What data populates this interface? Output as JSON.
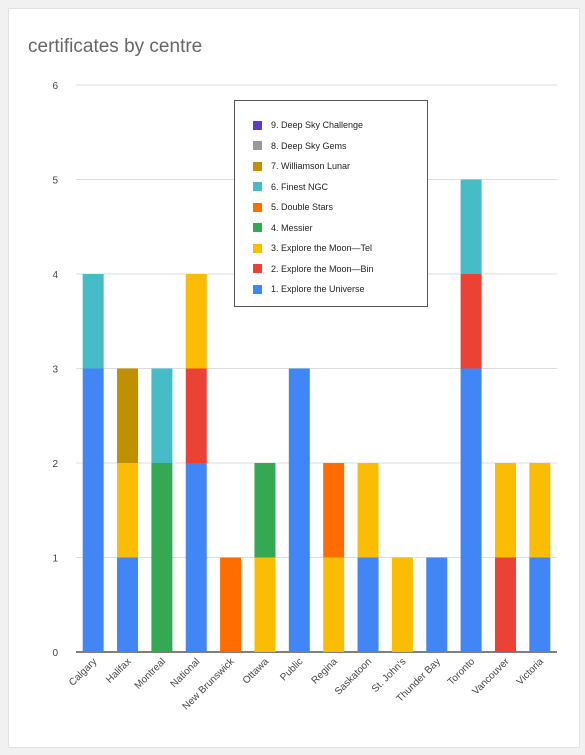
{
  "chart_data": {
    "type": "bar",
    "stacked": true,
    "title": "certificates by centre",
    "xlabel": "",
    "ylabel": "",
    "ylim": [
      0,
      6
    ],
    "yticks": [
      0,
      1,
      2,
      3,
      4,
      5,
      6
    ],
    "grid": true,
    "legend_position": "top-center (inside plot)",
    "categories": [
      "Calgary",
      "Halifax",
      "Montreal",
      "National",
      "New Brunswick",
      "Ottawa",
      "Public",
      "Regina",
      "Saskatoon",
      "St. John's",
      "Thunder Bay",
      "Toronto",
      "Vancouver",
      "Victoria"
    ],
    "series": [
      {
        "name": "1. Explore the Universe",
        "color": "#4285f4",
        "values": [
          3,
          1,
          0,
          2,
          0,
          0,
          3,
          0,
          1,
          0,
          1,
          3,
          0,
          1
        ]
      },
      {
        "name": "2. Explore the Moon—Bin",
        "color": "#ea4335",
        "values": [
          0,
          0,
          0,
          1,
          0,
          0,
          0,
          0,
          0,
          0,
          0,
          1,
          1,
          0
        ]
      },
      {
        "name": "3. Explore the Moon—Tel",
        "color": "#fbbc04",
        "values": [
          0,
          1,
          0,
          1,
          0,
          1,
          0,
          1,
          1,
          1,
          0,
          0,
          1,
          1
        ]
      },
      {
        "name": "4. Messier",
        "color": "#34a853",
        "values": [
          0,
          0,
          2,
          0,
          0,
          1,
          0,
          0,
          0,
          0,
          0,
          0,
          0,
          0
        ]
      },
      {
        "name": "5. Double Stars",
        "color": "#ff6d01",
        "values": [
          0,
          0,
          0,
          0,
          1,
          0,
          0,
          1,
          0,
          0,
          0,
          0,
          0,
          0
        ]
      },
      {
        "name": "6. Finest NGC",
        "color": "#46bdc6",
        "values": [
          1,
          0,
          1,
          0,
          0,
          0,
          0,
          0,
          0,
          0,
          0,
          1,
          0,
          0
        ]
      },
      {
        "name": "7. Williamson Lunar",
        "color": "#bf9000",
        "values": [
          0,
          1,
          0,
          0,
          0,
          0,
          0,
          0,
          0,
          0,
          0,
          0,
          0,
          0
        ]
      },
      {
        "name": "8. Deep Sky Gems",
        "color": "#999999",
        "values": [
          0,
          0,
          0,
          0,
          0,
          0,
          0,
          0,
          0,
          0,
          0,
          0,
          0,
          0
        ]
      },
      {
        "name": "9. Deep Sky Challenge",
        "color": "#5e3ec0",
        "values": [
          0,
          0,
          0,
          0,
          0,
          0,
          0,
          0,
          0,
          0,
          0,
          0,
          0,
          0
        ]
      }
    ]
  }
}
